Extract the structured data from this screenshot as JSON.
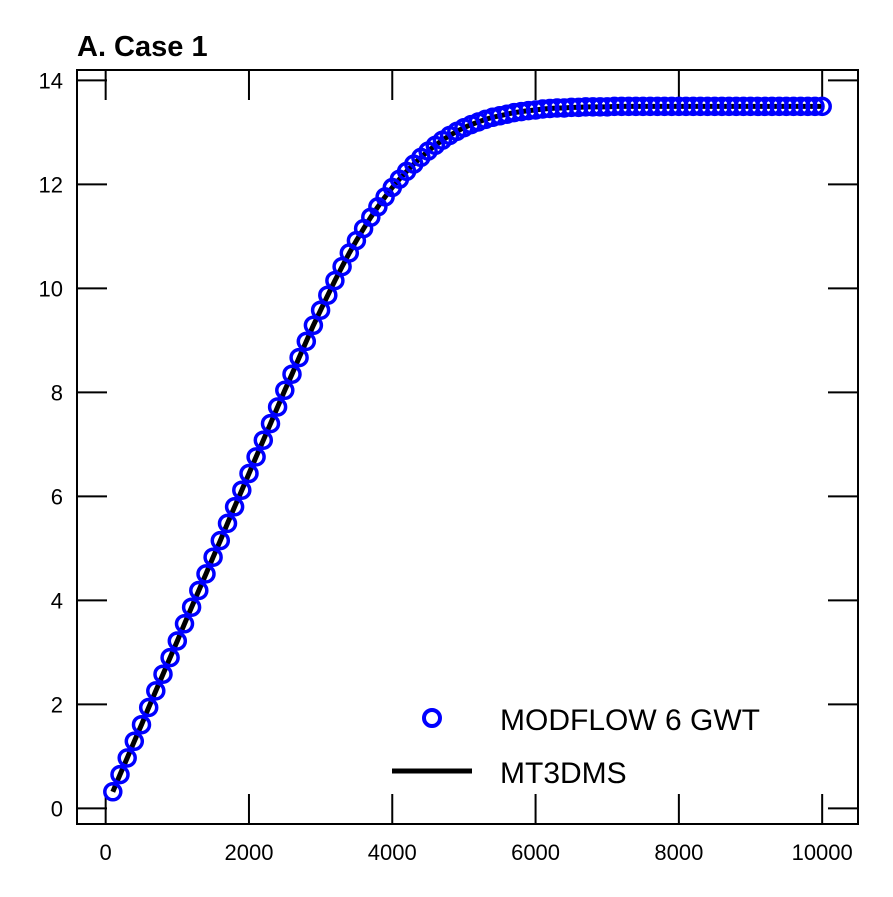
{
  "chart_data": {
    "type": "line",
    "title": "A. Case 1",
    "xlabel": "",
    "ylabel": "",
    "xlim": [
      -400,
      10500
    ],
    "ylim": [
      -0.3,
      14.2
    ],
    "xticks": [
      0,
      2000,
      4000,
      6000,
      8000,
      10000
    ],
    "yticks": [
      0,
      2,
      4,
      6,
      8,
      10,
      12,
      14
    ],
    "xtick_labels": [
      "0",
      "2000",
      "4000",
      "6000",
      "8000",
      "10000"
    ],
    "ytick_labels": [
      "0",
      "2",
      "4",
      "6",
      "8",
      "10",
      "12",
      "14"
    ],
    "grid": false,
    "legend_position": "lower-right",
    "series": [
      {
        "name": "MODFLOW 6 GWT",
        "style": "markers",
        "marker": "open-circle",
        "color": "#0000ff",
        "x": [
          100,
          200,
          300,
          400,
          500,
          600,
          700,
          800,
          900,
          1000,
          1100,
          1200,
          1300,
          1400,
          1500,
          1600,
          1700,
          1800,
          1900,
          2000,
          2100,
          2200,
          2300,
          2400,
          2500,
          2600,
          2700,
          2800,
          2900,
          3000,
          3100,
          3200,
          3300,
          3400,
          3500,
          3600,
          3700,
          3800,
          3900,
          4000,
          4100,
          4200,
          4300,
          4400,
          4500,
          4600,
          4700,
          4800,
          4900,
          5000,
          5100,
          5200,
          5300,
          5400,
          5500,
          5600,
          5700,
          5800,
          5900,
          6000,
          6100,
          6200,
          6300,
          6400,
          6500,
          6600,
          6700,
          6800,
          6900,
          7000,
          7100,
          7200,
          7300,
          7400,
          7500,
          7600,
          7700,
          7800,
          7900,
          8000,
          8100,
          8200,
          8300,
          8400,
          8500,
          8600,
          8700,
          8800,
          8900,
          9000,
          9100,
          9200,
          9300,
          9400,
          9500,
          9600,
          9700,
          9800,
          9900,
          10000
        ],
        "y": [
          0.32,
          0.65,
          0.97,
          1.29,
          1.61,
          1.94,
          2.26,
          2.58,
          2.9,
          3.22,
          3.55,
          3.87,
          4.19,
          4.51,
          4.83,
          5.15,
          5.48,
          5.8,
          6.12,
          6.44,
          6.76,
          7.08,
          7.4,
          7.72,
          8.04,
          8.35,
          8.67,
          8.98,
          9.29,
          9.58,
          9.87,
          10.15,
          10.42,
          10.68,
          10.92,
          11.15,
          11.37,
          11.57,
          11.76,
          11.94,
          12.1,
          12.25,
          12.39,
          12.52,
          12.64,
          12.75,
          12.85,
          12.94,
          13.02,
          13.09,
          13.15,
          13.2,
          13.25,
          13.29,
          13.32,
          13.35,
          13.38,
          13.4,
          13.42,
          13.43,
          13.45,
          13.46,
          13.47,
          13.47,
          13.48,
          13.48,
          13.49,
          13.49,
          13.49,
          13.49,
          13.5,
          13.5,
          13.5,
          13.5,
          13.5,
          13.5,
          13.5,
          13.5,
          13.5,
          13.5,
          13.5,
          13.5,
          13.5,
          13.5,
          13.5,
          13.5,
          13.5,
          13.5,
          13.5,
          13.5,
          13.5,
          13.5,
          13.5,
          13.5,
          13.5,
          13.5,
          13.5,
          13.5,
          13.5,
          13.5
        ]
      },
      {
        "name": "MT3DMS",
        "style": "line",
        "color": "#000000",
        "x": [
          100,
          200,
          300,
          400,
          500,
          600,
          700,
          800,
          900,
          1000,
          1100,
          1200,
          1300,
          1400,
          1500,
          1600,
          1700,
          1800,
          1900,
          2000,
          2100,
          2200,
          2300,
          2400,
          2500,
          2600,
          2700,
          2800,
          2900,
          3000,
          3100,
          3200,
          3300,
          3400,
          3500,
          3600,
          3700,
          3800,
          3900,
          4000,
          4100,
          4200,
          4300,
          4400,
          4500,
          4600,
          4700,
          4800,
          4900,
          5000,
          5100,
          5200,
          5300,
          5400,
          5500,
          5600,
          5700,
          5800,
          5900,
          6000,
          6100,
          6200,
          6300,
          6400,
          6500,
          6600,
          6700,
          6800,
          6900,
          7000,
          7100,
          7200,
          7300,
          7400,
          7500,
          7600,
          7700,
          7800,
          7900,
          8000,
          8100,
          8200,
          8300,
          8400,
          8500,
          8600,
          8700,
          8800,
          8900,
          9000,
          9100,
          9200,
          9300,
          9400,
          9500,
          9600,
          9700,
          9800,
          9900,
          10000
        ],
        "y": [
          0.32,
          0.65,
          0.97,
          1.29,
          1.61,
          1.94,
          2.26,
          2.58,
          2.9,
          3.22,
          3.55,
          3.87,
          4.19,
          4.51,
          4.83,
          5.15,
          5.48,
          5.8,
          6.12,
          6.44,
          6.76,
          7.08,
          7.4,
          7.72,
          8.04,
          8.35,
          8.67,
          8.98,
          9.29,
          9.58,
          9.87,
          10.15,
          10.42,
          10.68,
          10.92,
          11.15,
          11.37,
          11.57,
          11.76,
          11.94,
          12.1,
          12.25,
          12.39,
          12.52,
          12.64,
          12.75,
          12.85,
          12.94,
          13.02,
          13.09,
          13.15,
          13.2,
          13.25,
          13.29,
          13.32,
          13.35,
          13.38,
          13.4,
          13.42,
          13.43,
          13.45,
          13.46,
          13.47,
          13.47,
          13.48,
          13.48,
          13.49,
          13.49,
          13.49,
          13.49,
          13.5,
          13.5,
          13.5,
          13.5,
          13.5,
          13.5,
          13.5,
          13.5,
          13.5,
          13.5,
          13.5,
          13.5,
          13.5,
          13.5,
          13.5,
          13.5,
          13.5,
          13.5,
          13.5,
          13.5,
          13.5,
          13.5,
          13.5,
          13.5,
          13.5,
          13.5,
          13.5,
          13.5,
          13.5,
          13.5
        ]
      }
    ]
  }
}
